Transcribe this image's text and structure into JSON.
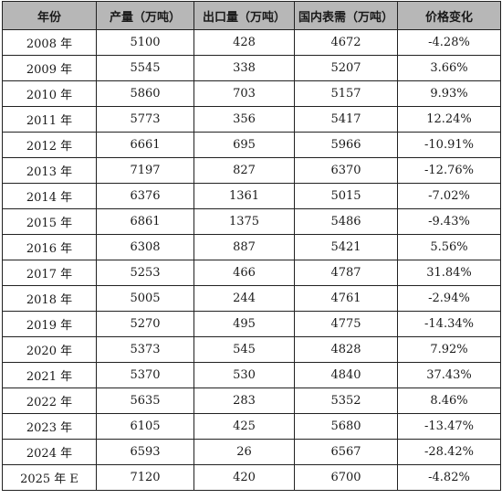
{
  "table": {
    "headers": [
      "年份",
      "产量（万吨）",
      "出口量（万吨）",
      "国内表需（万吨）",
      "价格变化"
    ],
    "rows": [
      [
        "2008 年",
        "5100",
        "428",
        "4672",
        "-4.28%"
      ],
      [
        "2009 年",
        "5545",
        "338",
        "5207",
        "3.66%"
      ],
      [
        "2010 年",
        "5860",
        "703",
        "5157",
        "9.93%"
      ],
      [
        "2011 年",
        "5773",
        "356",
        "5417",
        "12.24%"
      ],
      [
        "2012 年",
        "6661",
        "695",
        "5966",
        "-10.91%"
      ],
      [
        "2013 年",
        "7197",
        "827",
        "6370",
        "-12.76%"
      ],
      [
        "2014 年",
        "6376",
        "1361",
        "5015",
        "-7.02%"
      ],
      [
        "2015 年",
        "6861",
        "1375",
        "5486",
        "-9.43%"
      ],
      [
        "2016 年",
        "6308",
        "887",
        "5421",
        "5.56%"
      ],
      [
        "2017 年",
        "5253",
        "466",
        "4787",
        "31.84%"
      ],
      [
        "2018 年",
        "5005",
        "244",
        "4761",
        "-2.94%"
      ],
      [
        "2019 年",
        "5270",
        "495",
        "4775",
        "-14.34%"
      ],
      [
        "2020 年",
        "5373",
        "545",
        "4828",
        "7.92%"
      ],
      [
        "2021 年",
        "5370",
        "530",
        "4840",
        "37.43%"
      ],
      [
        "2022 年",
        "5635",
        "283",
        "5352",
        "8.46%"
      ],
      [
        "2023 年",
        "6105",
        "425",
        "5680",
        "-13.47%"
      ],
      [
        "2024 年",
        "6593",
        "26",
        "6567",
        "-28.42%"
      ],
      [
        "2025 年 E",
        "7120",
        "420",
        "6700",
        "-4.82%"
      ]
    ]
  }
}
